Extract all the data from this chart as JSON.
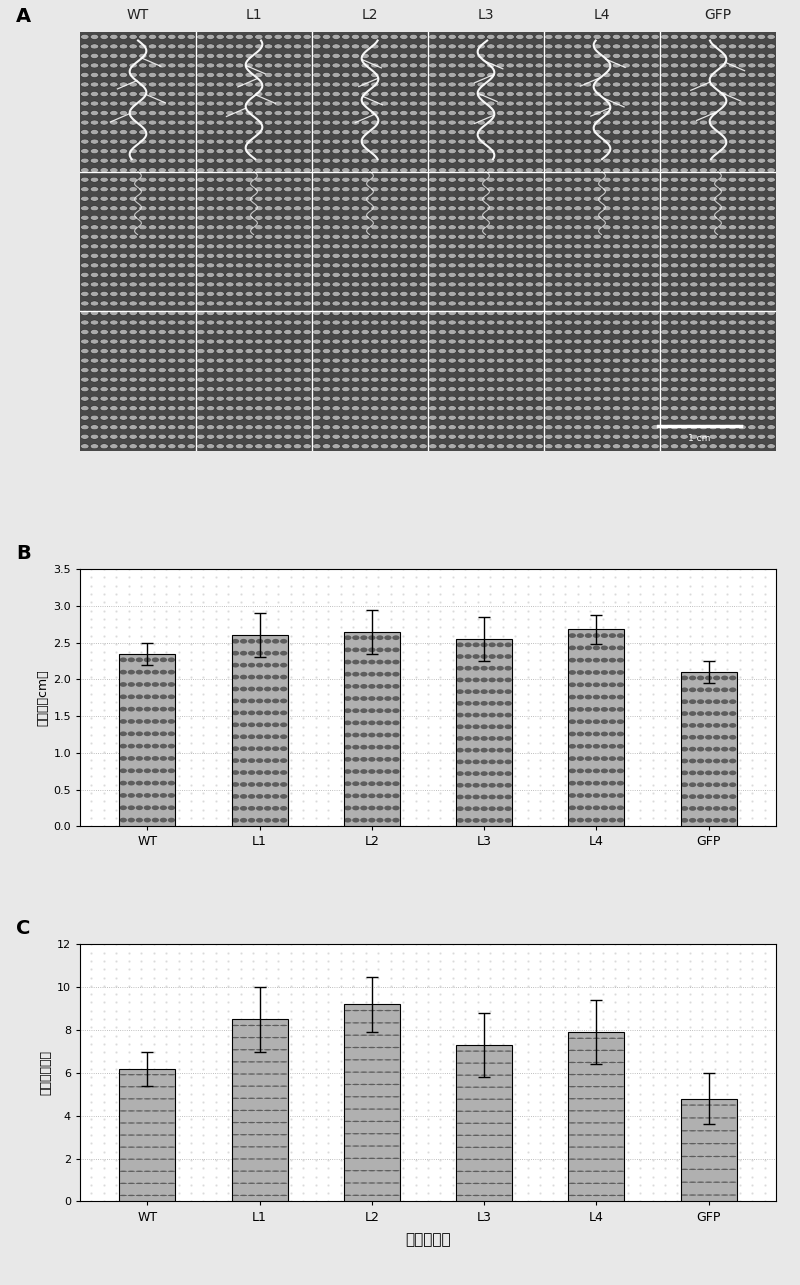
{
  "panel_A_label": "A",
  "panel_B_label": "B",
  "panel_C_label": "C",
  "categories": [
    "WT",
    "L1",
    "L2",
    "L3",
    "L4",
    "GFP"
  ],
  "bar_B_values": [
    2.35,
    2.6,
    2.65,
    2.55,
    2.68,
    2.1
  ],
  "bar_B_errors": [
    0.15,
    0.3,
    0.3,
    0.3,
    0.2,
    0.15
  ],
  "bar_C_values": [
    6.2,
    8.5,
    9.2,
    7.3,
    7.9,
    4.8
  ],
  "bar_C_errors": [
    0.8,
    1.5,
    1.3,
    1.5,
    1.5,
    1.2
  ],
  "ylabel_B": "主根长（cm）",
  "ylabel_C": "侧根数（条）",
  "xlabel": "拟南芥株系",
  "ylim_B": [
    0.0,
    3.5
  ],
  "yticks_B": [
    0.0,
    0.5,
    1.0,
    1.5,
    2.0,
    2.5,
    3.0,
    3.5
  ],
  "ylim_C": [
    0,
    12
  ],
  "yticks_C": [
    0,
    2,
    4,
    6,
    8,
    10,
    12
  ],
  "bar_color_light": "#d8d8d8",
  "bar_color_dark": "#404040",
  "bar_edge_color": "#000000",
  "panel_A_bg": "#606060",
  "dot_dark": "#202020",
  "dot_light": "#d0d0d0",
  "chart_bg": "#ffffff",
  "scale_bar_text": "1 cm",
  "col_labels": [
    "WT",
    "L1",
    "L2",
    "L3",
    "L4",
    "GFP"
  ],
  "n_cols": 6,
  "n_rows": 3
}
